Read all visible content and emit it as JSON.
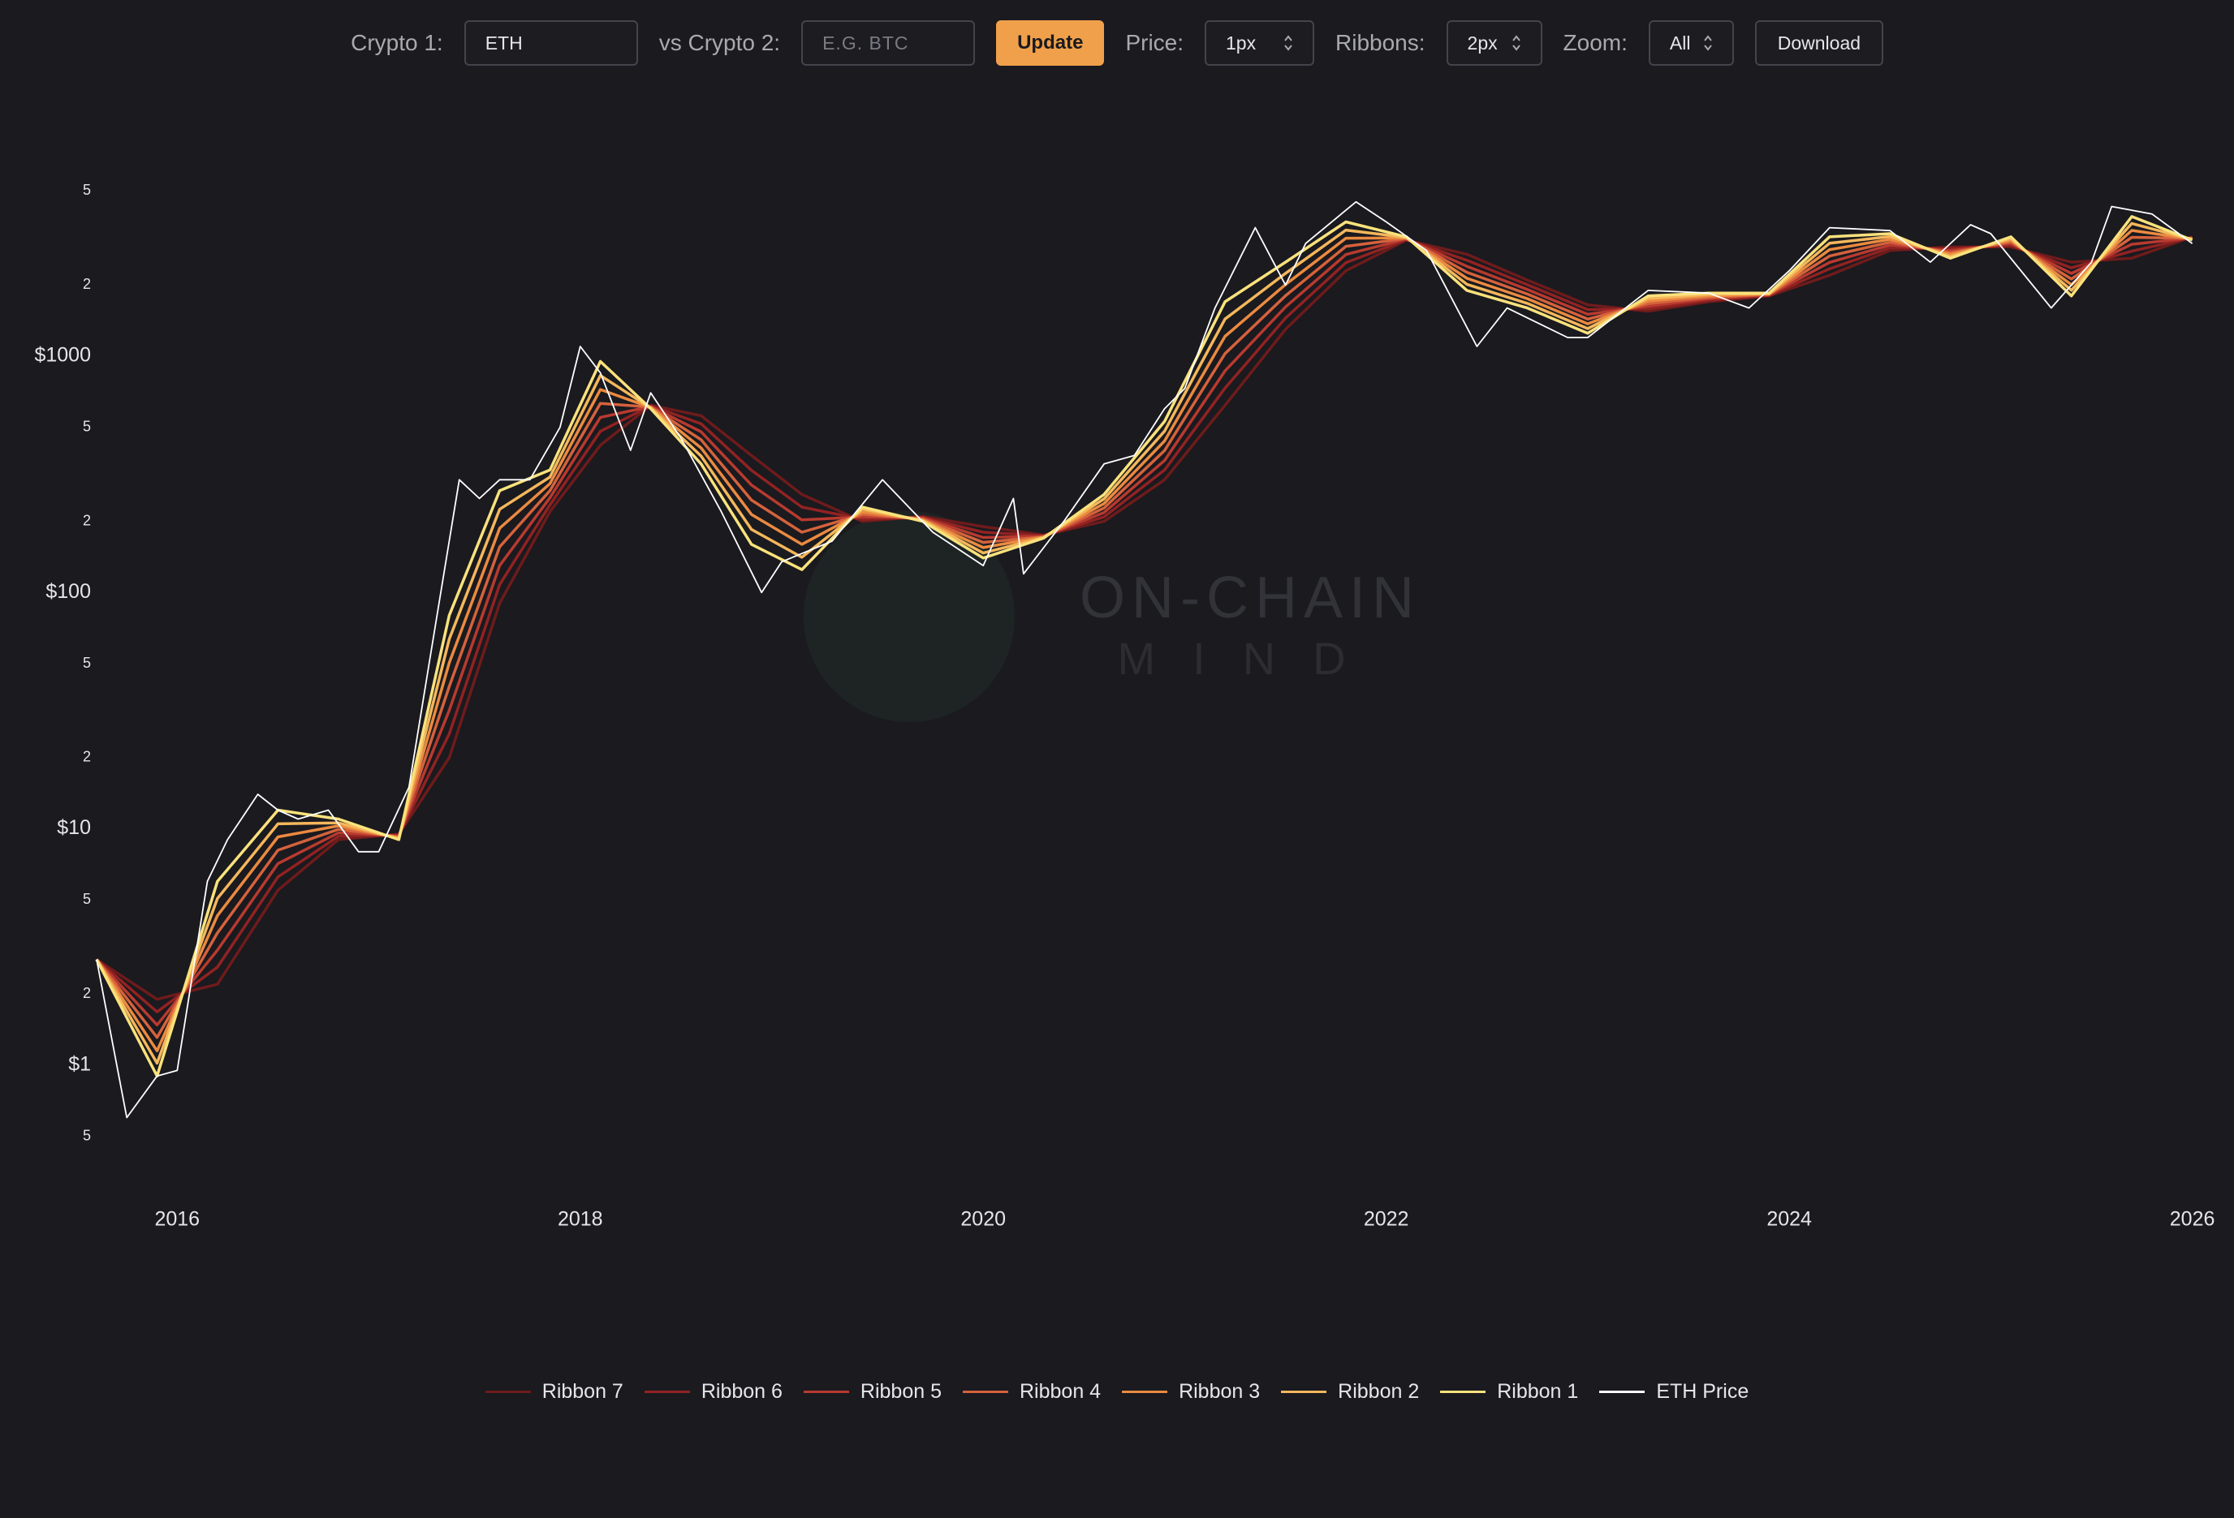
{
  "toolbar": {
    "crypto1_label": "Crypto 1:",
    "crypto1_value": "ETH",
    "crypto2_label": "vs Crypto 2:",
    "crypto2_placeholder": "E.G. BTC",
    "update": "Update",
    "price_label": "Price:",
    "price_value": "1px",
    "ribbons_label": "Ribbons:",
    "ribbons_value": "2px",
    "zoom_label": "Zoom:",
    "zoom_value": "All",
    "download": "Download"
  },
  "watermark": {
    "line1": "ON-CHAIN",
    "line2": "MIND"
  },
  "chart_data": {
    "type": "line",
    "yscale": "log",
    "grid": false,
    "legend": "bottom",
    "xlim": [
      2015.6,
      2026.05
    ],
    "xticks": [
      2016,
      2018,
      2020,
      2022,
      2024,
      2026
    ],
    "ylim": [
      0.32,
      8000
    ],
    "yticks": [
      {
        "value": 0.5,
        "label": "5"
      },
      {
        "value": 1,
        "label": "$1"
      },
      2,
      5,
      {
        "value": 10,
        "label": "$10"
      },
      {
        "value": 20,
        "label": "2"
      },
      {
        "value": 50,
        "label": "5"
      },
      {
        "value": 100,
        "label": "$100"
      },
      {
        "value": 200,
        "label": "2"
      },
      {
        "value": 500,
        "label": "5"
      },
      {
        "value": 1000,
        "label": "$1000"
      },
      {
        "value": 2000,
        "label": "2"
      },
      {
        "value": 5000,
        "label": "5"
      }
    ],
    "series": [
      {
        "name": "Ribbon 7",
        "color": "#6e1b1b",
        "x": [
          2015.6,
          2015.9,
          2016.2,
          2016.5,
          2016.8,
          2017.1,
          2017.35,
          2017.6,
          2017.85,
          2018.1,
          2018.35,
          2018.6,
          2018.85,
          2019.1,
          2019.4,
          2019.7,
          2020.0,
          2020.3,
          2020.6,
          2020.9,
          2021.2,
          2021.5,
          2021.8,
          2022.1,
          2022.4,
          2022.7,
          2023.0,
          2023.3,
          2023.6,
          2023.9,
          2024.2,
          2024.5,
          2024.8,
          2025.1,
          2025.4,
          2025.7,
          2026.0
        ],
        "values": [
          2.8,
          1.9,
          2.2,
          5.5,
          9,
          9.5,
          20,
          90,
          220,
          420,
          620,
          560,
          380,
          260,
          200,
          210,
          190,
          175,
          200,
          300,
          620,
          1300,
          2300,
          3100,
          2700,
          2100,
          1650,
          1550,
          1700,
          1800,
          2200,
          2800,
          2900,
          2900,
          2500,
          2600,
          3200
        ]
      },
      {
        "name": "Ribbon 6",
        "color": "#922222",
        "x": [
          2015.6,
          2015.9,
          2016.2,
          2016.5,
          2016.8,
          2017.1,
          2017.35,
          2017.6,
          2017.85,
          2018.1,
          2018.35,
          2018.6,
          2018.85,
          2019.1,
          2019.4,
          2019.7,
          2020.0,
          2020.3,
          2020.6,
          2020.9,
          2021.2,
          2021.5,
          2021.8,
          2022.1,
          2022.4,
          2022.7,
          2023.0,
          2023.3,
          2023.6,
          2023.9,
          2024.2,
          2024.5,
          2024.8,
          2025.1,
          2025.4,
          2025.7,
          2026.0
        ],
        "values": [
          2.8,
          1.68,
          2.6,
          6.26,
          9.3,
          9.42,
          25.2,
          108,
          235,
          481,
          617,
          518,
          329,
          230,
          204,
          208,
          180,
          174,
          209,
          330,
          733,
          1450,
          2489,
          3116,
          2546,
          2007,
          1575,
          1589,
          1724,
          1808,
          2343,
          2878,
          2847,
          2948,
          2367,
          2782,
          3183
        ]
      },
      {
        "name": "Ribbon 5",
        "color": "#b83a2f",
        "x": [
          2015.6,
          2015.9,
          2016.2,
          2016.5,
          2016.8,
          2017.1,
          2017.35,
          2017.6,
          2017.85,
          2018.1,
          2018.35,
          2018.6,
          2018.85,
          2019.1,
          2019.4,
          2019.7,
          2020.0,
          2020.3,
          2020.6,
          2020.9,
          2021.2,
          2021.5,
          2021.8,
          2022.1,
          2022.4,
          2022.7,
          2023.0,
          2023.3,
          2023.6,
          2023.9,
          2024.2,
          2024.5,
          2024.8,
          2025.1,
          2025.4,
          2025.7,
          2026.0
        ],
        "values": [
          2.8,
          1.48,
          3.07,
          7.13,
          9.62,
          9.33,
          31.7,
          130,
          252,
          551,
          613,
          479,
          285,
          203,
          209,
          207,
          171,
          173,
          218,
          362,
          867,
          1617,
          2694,
          3133,
          2402,
          1918,
          1504,
          1629,
          1749,
          1817,
          2494,
          2958,
          2796,
          2997,
          2240,
          2976,
          3167
        ]
      },
      {
        "name": "Ribbon 4",
        "color": "#d5623c",
        "x": [
          2015.6,
          2015.9,
          2016.2,
          2016.5,
          2016.8,
          2017.1,
          2017.35,
          2017.6,
          2017.85,
          2018.1,
          2018.35,
          2018.6,
          2018.85,
          2019.1,
          2019.4,
          2019.7,
          2020.0,
          2020.3,
          2020.6,
          2020.9,
          2021.2,
          2021.5,
          2021.8,
          2022.1,
          2022.4,
          2022.7,
          2023.0,
          2023.3,
          2023.6,
          2023.9,
          2024.2,
          2024.5,
          2024.8,
          2025.1,
          2025.4,
          2025.7,
          2026.0
        ],
        "values": [
          2.8,
          1.31,
          3.63,
          8.12,
          9.95,
          9.25,
          40,
          156,
          270,
          631,
          610,
          443,
          246,
          180,
          214,
          205,
          163,
          172,
          228,
          399,
          1026,
          1803,
          2917,
          3150,
          2265,
          1833,
          1436,
          1670,
          1773,
          1825,
          2654,
          3040,
          2746,
          3046,
          2121,
          3184,
          3150
        ]
      },
      {
        "name": "Ribbon 3",
        "color": "#eb8a40",
        "x": [
          2015.6,
          2015.9,
          2016.2,
          2016.5,
          2016.8,
          2017.1,
          2017.35,
          2017.6,
          2017.85,
          2018.1,
          2018.35,
          2018.6,
          2018.85,
          2019.1,
          2019.4,
          2019.7,
          2020.0,
          2020.3,
          2020.6,
          2020.9,
          2021.2,
          2021.5,
          2021.8,
          2022.1,
          2022.4,
          2022.7,
          2023.0,
          2023.3,
          2023.6,
          2023.9,
          2024.2,
          2024.5,
          2024.8,
          2025.1,
          2025.4,
          2025.7,
          2026.0
        ],
        "values": [
          2.8,
          1.15,
          4.3,
          9.25,
          10.3,
          9.16,
          50.4,
          187,
          289,
          723,
          607,
          409,
          214,
          160,
          219,
          203,
          155,
          172,
          238,
          438,
          1214,
          2011,
          3157,
          3167,
          2136,
          1752,
          1371,
          1712,
          1798,
          1833,
          2825,
          3124,
          2697,
          3097,
          2008,
          3407,
          3133
        ]
      },
      {
        "name": "Ribbon 2",
        "color": "#f4b75b",
        "x": [
          2015.6,
          2015.9,
          2016.2,
          2016.5,
          2016.8,
          2017.1,
          2017.35,
          2017.6,
          2017.85,
          2018.1,
          2018.35,
          2018.6,
          2018.85,
          2019.1,
          2019.4,
          2019.7,
          2020.0,
          2020.3,
          2020.6,
          2020.9,
          2021.2,
          2021.5,
          2021.8,
          2022.1,
          2022.4,
          2022.7,
          2023.0,
          2023.3,
          2023.6,
          2023.9,
          2024.2,
          2024.5,
          2024.8,
          2025.1,
          2025.4,
          2025.7,
          2026.0
        ],
        "values": [
          2.8,
          1.02,
          5.08,
          10.5,
          10.6,
          9.08,
          63.5,
          225,
          308,
          829,
          603,
          378,
          185,
          141,
          225,
          202,
          147,
          171,
          249,
          482,
          1437,
          2242,
          3418,
          3183,
          2015,
          1674,
          1309,
          1756,
          1824,
          1842,
          3006,
          3211,
          2648,
          3148,
          1901,
          3645,
          3117
        ]
      },
      {
        "name": "Ribbon 1",
        "color": "#fae27c",
        "x": [
          2015.6,
          2015.9,
          2016.2,
          2016.5,
          2016.8,
          2017.1,
          2017.35,
          2017.6,
          2017.85,
          2018.1,
          2018.35,
          2018.6,
          2018.85,
          2019.1,
          2019.4,
          2019.7,
          2020.0,
          2020.3,
          2020.6,
          2020.9,
          2021.2,
          2021.5,
          2021.8,
          2022.1,
          2022.4,
          2022.7,
          2023.0,
          2023.3,
          2023.6,
          2023.9,
          2024.2,
          2024.5,
          2024.8,
          2025.1,
          2025.4,
          2025.7,
          2026.0
        ],
        "values": [
          2.8,
          0.9,
          6,
          12,
          11,
          9,
          80,
          270,
          330,
          950,
          600,
          350,
          160,
          125,
          230,
          200,
          140,
          170,
          260,
          530,
          1700,
          2500,
          3700,
          3200,
          1900,
          1600,
          1250,
          1800,
          1850,
          1850,
          3200,
          3300,
          2600,
          3200,
          1800,
          3900,
          3100
        ]
      },
      {
        "name": "ETH Price",
        "color": "#ffffff",
        "x": [
          2015.6,
          2015.75,
          2015.9,
          2016.0,
          2016.15,
          2016.25,
          2016.4,
          2016.5,
          2016.6,
          2016.75,
          2016.9,
          2017.0,
          2017.15,
          2017.25,
          2017.4,
          2017.5,
          2017.6,
          2017.75,
          2017.9,
          2018.0,
          2018.1,
          2018.25,
          2018.35,
          2018.5,
          2018.7,
          2018.9,
          2019.0,
          2019.25,
          2019.5,
          2019.75,
          2020.0,
          2020.15,
          2020.2,
          2020.4,
          2020.6,
          2020.75,
          2020.9,
          2021.0,
          2021.15,
          2021.35,
          2021.5,
          2021.6,
          2021.85,
          2022.0,
          2022.2,
          2022.45,
          2022.6,
          2022.9,
          2023.0,
          2023.3,
          2023.6,
          2023.8,
          2024.0,
          2024.2,
          2024.5,
          2024.7,
          2024.9,
          2025.0,
          2025.3,
          2025.5,
          2025.6,
          2025.8,
          2026.0
        ],
        "values": [
          2.8,
          0.6,
          0.9,
          0.95,
          6,
          9,
          14,
          12,
          11,
          12,
          8,
          8,
          15,
          50,
          300,
          250,
          300,
          300,
          500,
          1100,
          850,
          400,
          700,
          450,
          220,
          100,
          135,
          165,
          300,
          180,
          130,
          250,
          120,
          200,
          350,
          380,
          600,
          730,
          1600,
          3500,
          2000,
          3000,
          4500,
          3700,
          2800,
          1100,
          1600,
          1200,
          1200,
          1900,
          1850,
          1600,
          2300,
          3500,
          3400,
          2500,
          3600,
          3300,
          1600,
          2500,
          4300,
          4000,
          3000
        ]
      }
    ]
  }
}
